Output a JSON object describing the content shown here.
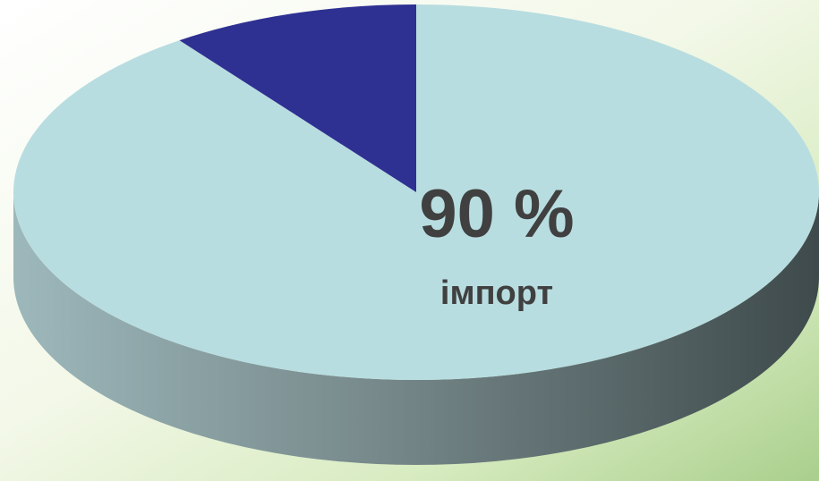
{
  "chart_data": {
    "type": "pie",
    "categories": [
      "імпорт",
      null
    ],
    "values": [
      90,
      10
    ],
    "value_labels": [
      "90 %",
      null
    ],
    "colors": [
      "#b8dde0",
      "#2e3192"
    ]
  }
}
